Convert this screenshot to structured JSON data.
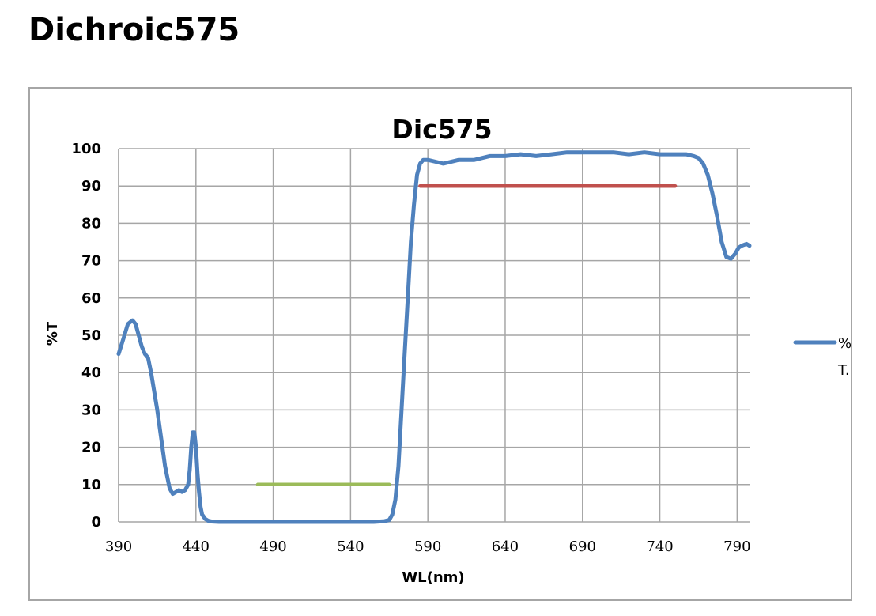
{
  "header": {
    "title": "Dichroic575"
  },
  "chart_data": {
    "type": "line",
    "title": "Dic575",
    "xlabel": "WL(nm)",
    "ylabel": "%T",
    "xlim": [
      390,
      798
    ],
    "ylim": [
      0,
      100
    ],
    "x_ticks": [
      390,
      440,
      490,
      540,
      590,
      640,
      690,
      740,
      790
    ],
    "y_ticks": [
      0,
      10,
      20,
      30,
      40,
      50,
      60,
      70,
      80,
      90,
      100
    ],
    "grid": true,
    "legend": {
      "placement": "right",
      "entries": [
        "%",
        "T."
      ]
    },
    "series": [
      {
        "name": "% T.",
        "color": "#4f81bd",
        "x": [
          390,
          393,
          396,
          399,
          401,
          403,
          405,
          407,
          409,
          411,
          413,
          415,
          417,
          420,
          423,
          425,
          427,
          429,
          431,
          433,
          435,
          436,
          437,
          438,
          439,
          440,
          441,
          442,
          443,
          444,
          446,
          448,
          450,
          455,
          460,
          480,
          500,
          520,
          540,
          555,
          562,
          565,
          567,
          569,
          571,
          573,
          575,
          577,
          579,
          581,
          583,
          585,
          587,
          590,
          595,
          600,
          610,
          620,
          630,
          640,
          650,
          660,
          670,
          680,
          690,
          700,
          710,
          720,
          730,
          740,
          750,
          757,
          762,
          765,
          768,
          771,
          774,
          777,
          780,
          783,
          786,
          789,
          791,
          793,
          796,
          798
        ],
        "y": [
          45,
          49,
          53,
          54,
          53,
          50,
          47,
          45,
          44,
          40,
          35,
          30,
          24,
          15,
          9,
          7.5,
          8,
          8.5,
          8,
          8.5,
          10,
          14,
          20,
          24,
          24,
          20,
          13,
          8,
          4,
          2,
          0.8,
          0.3,
          0.1,
          0,
          0,
          0,
          0,
          0,
          0,
          0,
          0.2,
          0.5,
          2,
          6,
          15,
          30,
          45,
          60,
          75,
          85,
          93,
          96,
          97,
          97,
          96.5,
          96,
          97,
          97,
          98,
          98,
          98.5,
          98,
          98.5,
          99,
          99,
          99,
          99,
          98.5,
          99,
          98.5,
          98.5,
          98.5,
          98,
          97.5,
          96,
          93,
          88,
          82,
          75,
          71,
          70.5,
          72,
          73.5,
          74,
          74.5,
          74
        ]
      },
      {
        "name": "",
        "color": "#9bbb59",
        "x": [
          480,
          565
        ],
        "y": [
          10,
          10
        ]
      },
      {
        "name": "",
        "color": "#c0504d",
        "x": [
          585,
          750
        ],
        "y": [
          90,
          90
        ]
      }
    ]
  }
}
